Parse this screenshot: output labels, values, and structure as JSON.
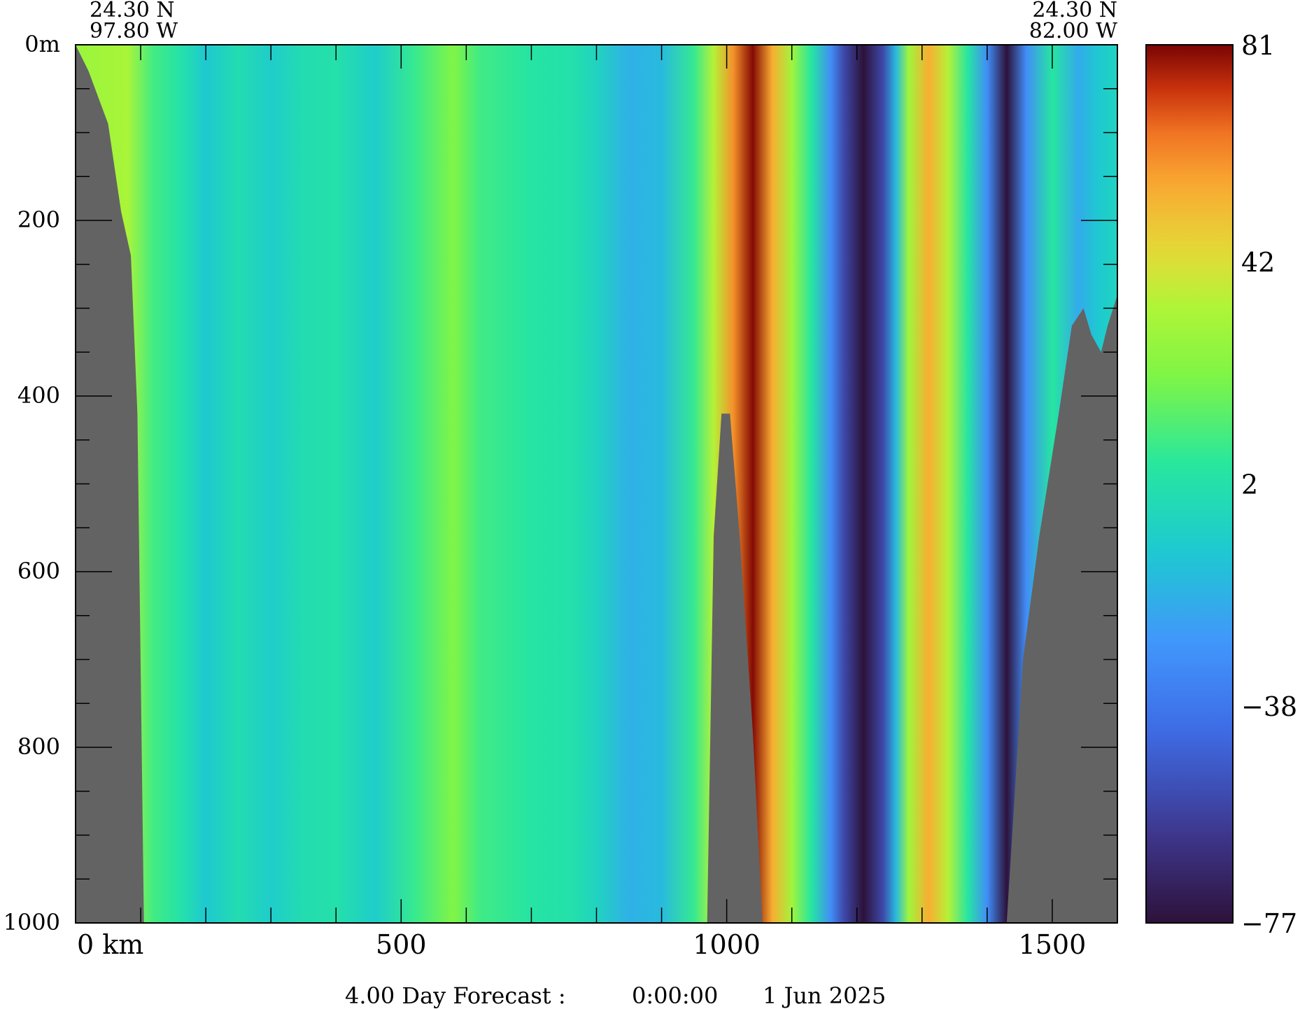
{
  "chart_data": {
    "type": "heatmap",
    "title": "",
    "left_coords": {
      "lat": "24.30 N",
      "lon": "97.80 W"
    },
    "right_coords": {
      "lat": "24.30 N",
      "lon": "82.00 W"
    },
    "x_axis": {
      "min": 0,
      "max": 1600,
      "first_tick_label": "0 km",
      "tick_values": [
        0,
        500,
        1000,
        1500
      ],
      "tick_labels": [
        "0 km",
        "500",
        "1000",
        "1500"
      ]
    },
    "y_axis": {
      "min": 0,
      "max": 1000,
      "reversed": true,
      "tick_values": [
        0,
        200,
        400,
        600,
        800,
        1000
      ],
      "tick_labels": [
        "0m",
        "200",
        "400",
        "600",
        "800",
        "1000"
      ]
    },
    "colorbar": {
      "min": -77,
      "max": 81,
      "tick_values": [
        81,
        42,
        2,
        -38,
        -77
      ],
      "tick_labels": [
        "81",
        "42",
        "2",
        "−38",
        "−77"
      ]
    },
    "columns": [
      {
        "x": 0,
        "value": 28
      },
      {
        "x": 40,
        "value": 30
      },
      {
        "x": 80,
        "value": 32
      },
      {
        "x": 120,
        "value": 10
      },
      {
        "x": 160,
        "value": 3
      },
      {
        "x": 200,
        "value": -10
      },
      {
        "x": 250,
        "value": 0
      },
      {
        "x": 300,
        "value": -8
      },
      {
        "x": 350,
        "value": 0
      },
      {
        "x": 400,
        "value": 2
      },
      {
        "x": 460,
        "value": -8
      },
      {
        "x": 520,
        "value": 8
      },
      {
        "x": 580,
        "value": 22
      },
      {
        "x": 620,
        "value": 10
      },
      {
        "x": 700,
        "value": 4
      },
      {
        "x": 760,
        "value": 2
      },
      {
        "x": 800,
        "value": -5
      },
      {
        "x": 850,
        "value": -18
      },
      {
        "x": 900,
        "value": -15
      },
      {
        "x": 950,
        "value": 8
      },
      {
        "x": 980,
        "value": 35
      },
      {
        "x": 1010,
        "value": 60
      },
      {
        "x": 1040,
        "value": 80
      },
      {
        "x": 1070,
        "value": 55
      },
      {
        "x": 1100,
        "value": 30
      },
      {
        "x": 1130,
        "value": 5
      },
      {
        "x": 1160,
        "value": -30
      },
      {
        "x": 1180,
        "value": -55
      },
      {
        "x": 1210,
        "value": -77
      },
      {
        "x": 1240,
        "value": -55
      },
      {
        "x": 1260,
        "value": -15
      },
      {
        "x": 1280,
        "value": 30
      },
      {
        "x": 1310,
        "value": 55
      },
      {
        "x": 1340,
        "value": 35
      },
      {
        "x": 1370,
        "value": 5
      },
      {
        "x": 1400,
        "value": -30
      },
      {
        "x": 1430,
        "value": -77
      },
      {
        "x": 1460,
        "value": -30
      },
      {
        "x": 1500,
        "value": 5
      },
      {
        "x": 1540,
        "value": -20
      },
      {
        "x": 1570,
        "value": -10
      },
      {
        "x": 1600,
        "value": -5
      }
    ],
    "bathymetry_depth": [
      {
        "x": 0,
        "depth": 0
      },
      {
        "x": 20,
        "depth": 30
      },
      {
        "x": 50,
        "depth": 90
      },
      {
        "x": 70,
        "depth": 190
      },
      {
        "x": 85,
        "depth": 240
      },
      {
        "x": 95,
        "depth": 420
      },
      {
        "x": 105,
        "depth": 1000
      },
      {
        "x": 970,
        "depth": 1000
      },
      {
        "x": 980,
        "depth": 560
      },
      {
        "x": 992,
        "depth": 420
      },
      {
        "x": 1005,
        "depth": 420
      },
      {
        "x": 1020,
        "depth": 560
      },
      {
        "x": 1040,
        "depth": 780
      },
      {
        "x": 1055,
        "depth": 1000
      },
      {
        "x": 1430,
        "depth": 1000
      },
      {
        "x": 1455,
        "depth": 700
      },
      {
        "x": 1480,
        "depth": 560
      },
      {
        "x": 1510,
        "depth": 420
      },
      {
        "x": 1530,
        "depth": 320
      },
      {
        "x": 1548,
        "depth": 300
      },
      {
        "x": 1560,
        "depth": 330
      },
      {
        "x": 1575,
        "depth": 350
      },
      {
        "x": 1585,
        "depth": 320
      },
      {
        "x": 1600,
        "depth": 285
      }
    ],
    "colors": {
      "land": "#636363",
      "background": "#ffffff"
    }
  },
  "footer": {
    "forecast": "4.00 Day Forecast :",
    "time": "0:00:00",
    "date": "1 Jun 2025"
  }
}
